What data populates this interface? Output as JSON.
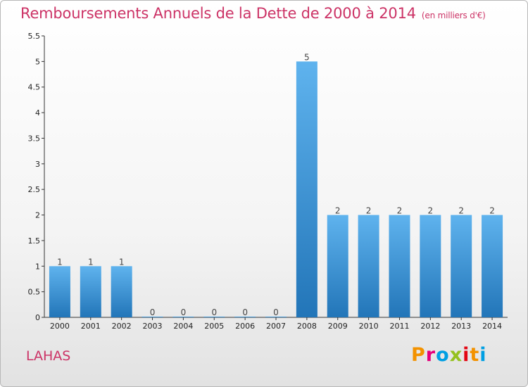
{
  "title": "Remboursements Annuels de la Dette de 2000 à 2014",
  "unit": "(en milliers d'€)",
  "commune": "LAHAS",
  "logo": {
    "letters": [
      "P",
      "r",
      "o",
      "x",
      "i",
      "t",
      "i"
    ],
    "colors": [
      "#f39200",
      "#e4007c",
      "#009fe3",
      "#95c11f",
      "#e30613",
      "#f39200",
      "#009fe3"
    ]
  },
  "chart_data": {
    "type": "bar",
    "categories": [
      "2000",
      "2001",
      "2002",
      "2003",
      "2004",
      "2005",
      "2006",
      "2007",
      "2008",
      "2009",
      "2010",
      "2011",
      "2012",
      "2013",
      "2014"
    ],
    "values": [
      1,
      1,
      1,
      0,
      0,
      0,
      0,
      0,
      5,
      2,
      2,
      2,
      2,
      2,
      2
    ],
    "value_labels": [
      "1",
      "1",
      "1",
      "0",
      "0",
      "0",
      "0",
      "0",
      "5",
      "2",
      "2",
      "2",
      "2",
      "2",
      "2"
    ],
    "ylim": [
      0,
      5.5
    ],
    "yticks": [
      0,
      0.5,
      1,
      1.5,
      2,
      2.5,
      3,
      3.5,
      4,
      4.5,
      5,
      5.5
    ],
    "ytick_labels": [
      "0",
      "0.5",
      "1",
      "1.5",
      "2",
      "2.5",
      "3",
      "3.5",
      "4",
      "4.5",
      "5",
      "5.5"
    ],
    "bar_color": "#3a97dc",
    "grid": false
  }
}
